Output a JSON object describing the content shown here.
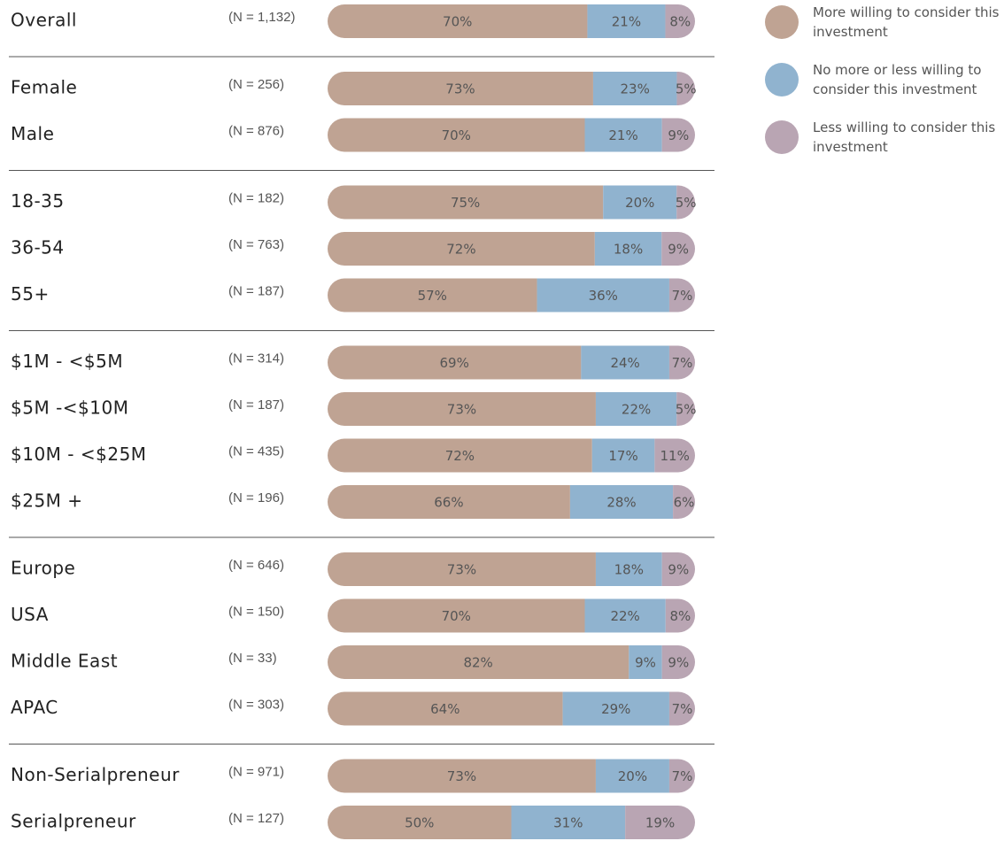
{
  "chart_data": {
    "type": "bar",
    "orientation": "horizontal",
    "stacked": true,
    "series": [
      {
        "name": "More willing to consider this investment",
        "color": "#bfa393"
      },
      {
        "name": "No more or less willing to consider this investment",
        "color": "#90b3cf"
      },
      {
        "name": "Less willing to consider this investment",
        "color": "#b9a5b3"
      }
    ],
    "groups": [
      {
        "categories": [
          "Overall"
        ],
        "sample_sizes": [
          "(N = 1,132)"
        ],
        "series": [
          {
            "values": [
              70
            ],
            "value_labels": [
              "70%"
            ]
          },
          {
            "values": [
              21
            ],
            "value_labels": [
              "21%"
            ]
          },
          {
            "values": [
              8
            ],
            "value_labels": [
              "8%"
            ]
          }
        ]
      },
      {
        "categories": [
          "Female",
          "Male"
        ],
        "sample_sizes": [
          "(N = 256)",
          "(N = 876)"
        ],
        "series": [
          {
            "values": [
              73,
              70
            ],
            "value_labels": [
              "73%",
              "70%"
            ]
          },
          {
            "values": [
              23,
              21
            ],
            "value_labels": [
              "23%",
              "21%"
            ]
          },
          {
            "values": [
              5,
              9
            ],
            "value_labels": [
              "5%",
              "9%"
            ]
          }
        ]
      },
      {
        "categories": [
          "18-35",
          "36-54",
          "55+"
        ],
        "sample_sizes": [
          "(N = 182)",
          "(N = 763)",
          "(N = 187)"
        ],
        "series": [
          {
            "values": [
              75,
              72,
              57
            ],
            "value_labels": [
              "75%",
              "72%",
              "57%"
            ]
          },
          {
            "values": [
              20,
              18,
              36
            ],
            "value_labels": [
              "20%",
              "18%",
              "36%"
            ]
          },
          {
            "values": [
              5,
              9,
              7
            ],
            "value_labels": [
              "5%",
              "9%",
              "7%"
            ]
          }
        ]
      },
      {
        "categories": [
          "$1M - <$5M",
          "$5M -<$10M",
          "$10M - <$25M",
          "$25M +"
        ],
        "sample_sizes": [
          "(N = 314)",
          "(N = 187)",
          "(N = 435)",
          "(N = 196)"
        ],
        "series": [
          {
            "values": [
              69,
              73,
              72,
              66
            ],
            "value_labels": [
              "69%",
              "73%",
              "72%",
              "66%"
            ]
          },
          {
            "values": [
              24,
              22,
              17,
              28
            ],
            "value_labels": [
              "24%",
              "22%",
              "17%",
              "28%"
            ]
          },
          {
            "values": [
              7,
              5,
              11,
              6
            ],
            "value_labels": [
              "7%",
              "5%",
              "11%",
              "6%"
            ]
          }
        ]
      },
      {
        "categories": [
          "Europe",
          "USA",
          "Middle East",
          "APAC"
        ],
        "sample_sizes": [
          "(N = 646)",
          "(N = 150)",
          "(N = 33)",
          "(N = 303)"
        ],
        "series": [
          {
            "values": [
              73,
              70,
              82,
              64
            ],
            "value_labels": [
              "73%",
              "70%",
              "82%",
              "64%"
            ]
          },
          {
            "values": [
              18,
              22,
              9,
              29
            ],
            "value_labels": [
              "18%",
              "22%",
              "9%",
              "29%"
            ]
          },
          {
            "values": [
              9,
              8,
              9,
              7
            ],
            "value_labels": [
              "9%",
              "8%",
              "9%",
              "7%"
            ]
          }
        ]
      },
      {
        "categories": [
          "Non-Serialpreneur",
          "Serialpreneur"
        ],
        "sample_sizes": [
          "(N = 971)",
          "(N = 127)"
        ],
        "series": [
          {
            "values": [
              73,
              50
            ],
            "value_labels": [
              "73%",
              "50%"
            ]
          },
          {
            "values": [
              20,
              31
            ],
            "value_labels": [
              "20%",
              "31%"
            ]
          },
          {
            "values": [
              7,
              19
            ],
            "value_labels": [
              "7%",
              "19%"
            ]
          }
        ]
      }
    ]
  }
}
